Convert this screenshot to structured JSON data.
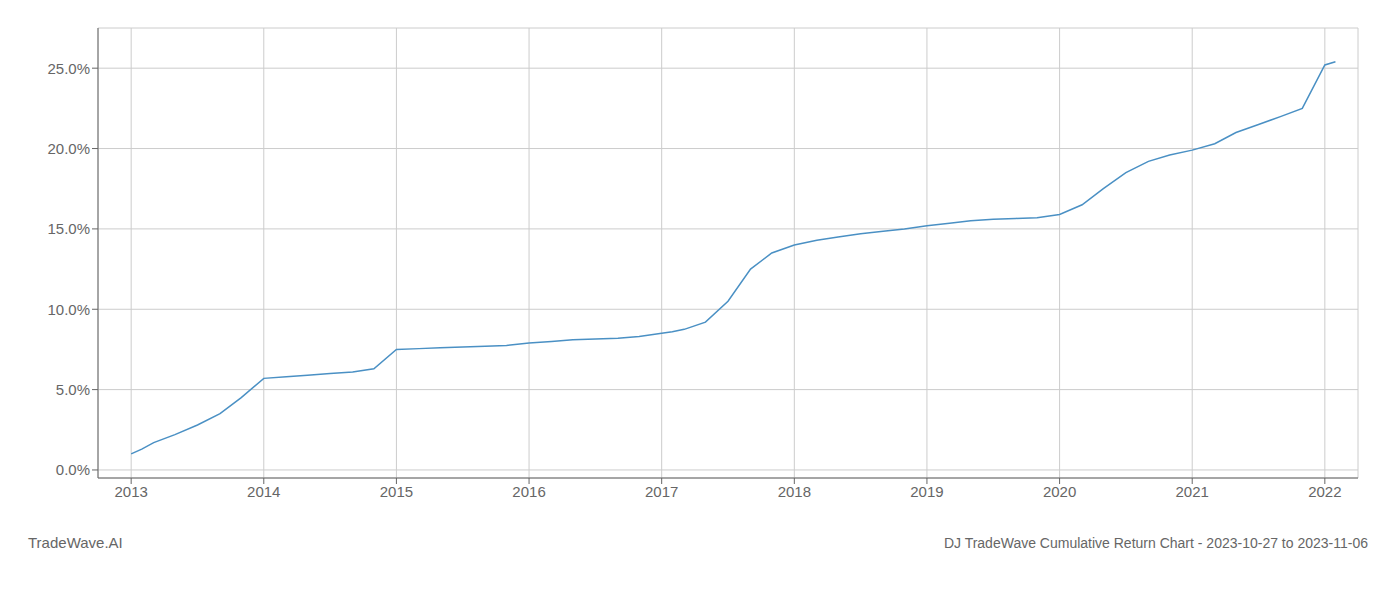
{
  "chart_data": {
    "type": "line",
    "title": "DJ TradeWave Cumulative Return Chart - 2023-10-27 to 2023-11-06",
    "annotations": [
      "TradeWave.AI"
    ],
    "x": [
      2013.0,
      2013.08,
      2013.17,
      2013.33,
      2013.5,
      2013.67,
      2013.83,
      2014.0,
      2014.17,
      2014.33,
      2014.5,
      2014.67,
      2014.83,
      2015.0,
      2015.17,
      2015.33,
      2015.5,
      2015.67,
      2015.83,
      2016.0,
      2016.17,
      2016.33,
      2016.5,
      2016.67,
      2016.83,
      2017.0,
      2017.08,
      2017.17,
      2017.33,
      2017.5,
      2017.67,
      2017.83,
      2018.0,
      2018.17,
      2018.33,
      2018.5,
      2018.67,
      2018.83,
      2019.0,
      2019.17,
      2019.33,
      2019.5,
      2019.67,
      2019.83,
      2020.0,
      2020.17,
      2020.33,
      2020.5,
      2020.67,
      2020.83,
      2021.0,
      2021.17,
      2021.33,
      2021.5,
      2021.67,
      2021.83,
      2022.0,
      2022.08
    ],
    "values": [
      1.0,
      1.3,
      1.7,
      2.2,
      2.8,
      3.5,
      4.5,
      5.7,
      5.8,
      5.9,
      6.0,
      6.1,
      6.3,
      7.5,
      7.55,
      7.6,
      7.65,
      7.7,
      7.75,
      7.9,
      8.0,
      8.1,
      8.15,
      8.2,
      8.3,
      8.5,
      8.6,
      8.75,
      9.2,
      10.5,
      12.5,
      13.5,
      14.0,
      14.3,
      14.5,
      14.7,
      14.85,
      15.0,
      15.2,
      15.35,
      15.5,
      15.6,
      15.65,
      15.7,
      15.9,
      16.5,
      17.5,
      18.5,
      19.2,
      19.6,
      19.9,
      20.3,
      21.0,
      21.5,
      22.0,
      22.5,
      25.2,
      25.4
    ],
    "color": "#4a90c4",
    "xlim": [
      2012.75,
      2022.25
    ],
    "ylim": [
      -0.5,
      27.5
    ],
    "xticks": [
      2013,
      2014,
      2015,
      2016,
      2017,
      2018,
      2019,
      2020,
      2021,
      2022
    ],
    "yticks": [
      {
        "value": 0.0,
        "label": "0.0%"
      },
      {
        "value": 5.0,
        "label": "5.0%"
      },
      {
        "value": 10.0,
        "label": "10.0%"
      },
      {
        "value": 15.0,
        "label": "15.0%"
      },
      {
        "value": 20.0,
        "label": "20.0%"
      },
      {
        "value": 25.0,
        "label": "25.0%"
      }
    ],
    "grid": true
  }
}
